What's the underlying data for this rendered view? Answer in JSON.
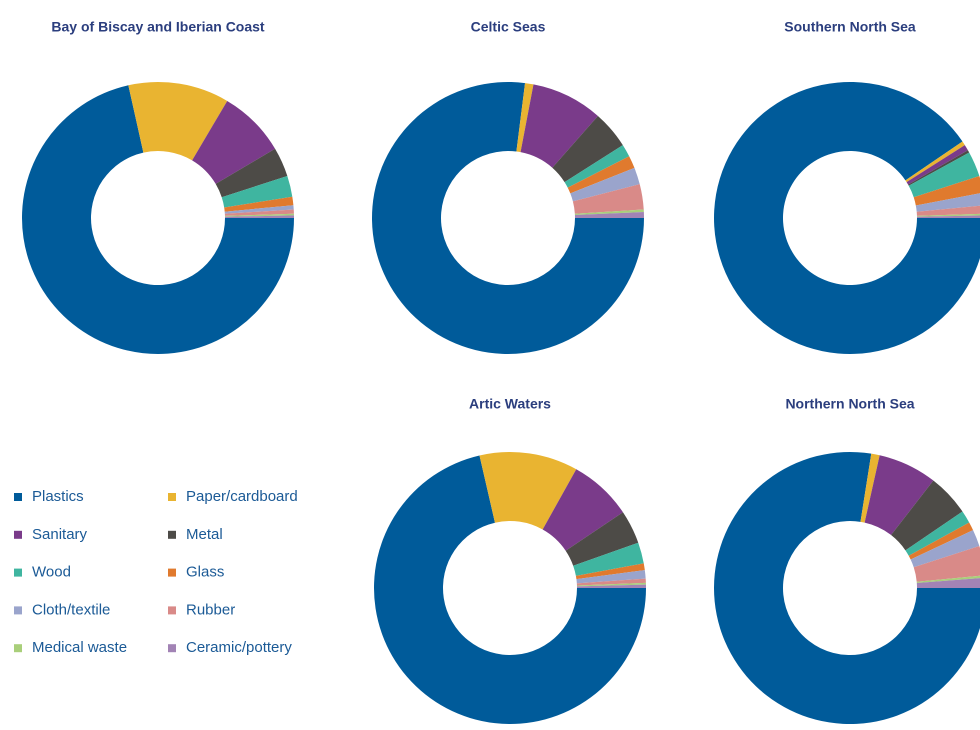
{
  "chart_data": [
    {
      "type": "donut",
      "title": "Bay of Biscay and Iberian Coast",
      "values": [
        71.5,
        12,
        8,
        3.5,
        2.5,
        1,
        0.5,
        0.5,
        0.2,
        0.3
      ]
    },
    {
      "type": "donut",
      "title": "Celtic Seas",
      "values": [
        77,
        1,
        8.5,
        4.5,
        1.5,
        1.5,
        2,
        3,
        0.3,
        0.7
      ]
    },
    {
      "type": "donut",
      "title": "Southern North Sea",
      "values": [
        90.5,
        0.5,
        0.7,
        0.3,
        3,
        2,
        1.5,
        1,
        0.2,
        0.3
      ]
    },
    {
      "type": "donut",
      "title": "Artic Waters",
      "values": [
        71.4,
        11.7,
        7.5,
        4,
        2.5,
        0.8,
        1,
        0.5,
        0.2,
        0.4
      ]
    },
    {
      "type": "donut",
      "title": "Northern North Sea",
      "values": [
        77.5,
        1,
        7,
        5,
        1.5,
        1,
        2,
        3.5,
        0.3,
        1.2
      ]
    }
  ],
  "legend": {
    "categories": [
      "Plastics",
      "Paper/cardboard",
      "Sanitary",
      "Metal",
      "Wood",
      "Glass",
      "Cloth/textile",
      "Rubber",
      "Medical waste",
      "Ceramic/pottery"
    ],
    "colors": [
      "#005b9a",
      "#e9b431",
      "#7a3b8a",
      "#4d4b47",
      "#3fb5a0",
      "#e07a2e",
      "#9aa4cc",
      "#d98a88",
      "#a9cf7a",
      "#a283b5"
    ]
  }
}
